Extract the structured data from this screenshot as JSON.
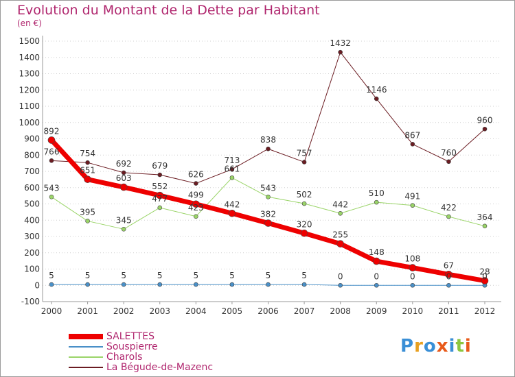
{
  "header": {
    "title": "Evolution du Montant de la Dette par Habitant",
    "unit": "(en €)"
  },
  "logo": {
    "text": "Proxiti",
    "colors": [
      "#3a8fd6",
      "#e8a020",
      "#3a8fd6",
      "#e85a1a",
      "#3a8fd6",
      "#8cc63f",
      "#e85a1a"
    ]
  },
  "chart_data": {
    "type": "line",
    "title": "Evolution du Montant de la Dette par Habitant",
    "ylabel": "(en €)",
    "xlabel": "",
    "ylim": [
      -100,
      1500
    ],
    "yticks": [
      -100,
      0,
      100,
      200,
      300,
      400,
      500,
      600,
      700,
      800,
      900,
      1000,
      1100,
      1200,
      1300,
      1400,
      1500
    ],
    "x": [
      "2000",
      "2001",
      "2002",
      "2003",
      "2004",
      "2005",
      "2006",
      "2007",
      "2008",
      "2009",
      "2010",
      "2011",
      "2012"
    ],
    "grid": "horizontal-dotted",
    "legend_position": "bottom-left",
    "series": [
      {
        "name": "La Bégude-de-Mazenc",
        "color": "#6b1c22",
        "width": 1,
        "values": [
          766,
          754,
          692,
          679,
          626,
          713,
          838,
          757,
          1432,
          1146,
          867,
          760,
          960
        ]
      },
      {
        "name": "Charols",
        "color": "#9ad468",
        "width": 1,
        "values": [
          543,
          395,
          345,
          477,
          423,
          661,
          543,
          502,
          442,
          510,
          491,
          422,
          364
        ]
      },
      {
        "name": "Souspierre",
        "color": "#4a90c8",
        "width": 1,
        "values": [
          5,
          5,
          5,
          5,
          5,
          5,
          5,
          5,
          0,
          0,
          0,
          0,
          0
        ]
      },
      {
        "name": "SALETTES",
        "color": "#ee0000",
        "width": 7,
        "values": [
          892,
          651,
          603,
          552,
          499,
          442,
          382,
          320,
          255,
          148,
          108,
          67,
          28
        ]
      }
    ],
    "legend_order": [
      "SALETTES",
      "Souspierre",
      "Charols",
      "La Bégude-de-Mazenc"
    ]
  }
}
